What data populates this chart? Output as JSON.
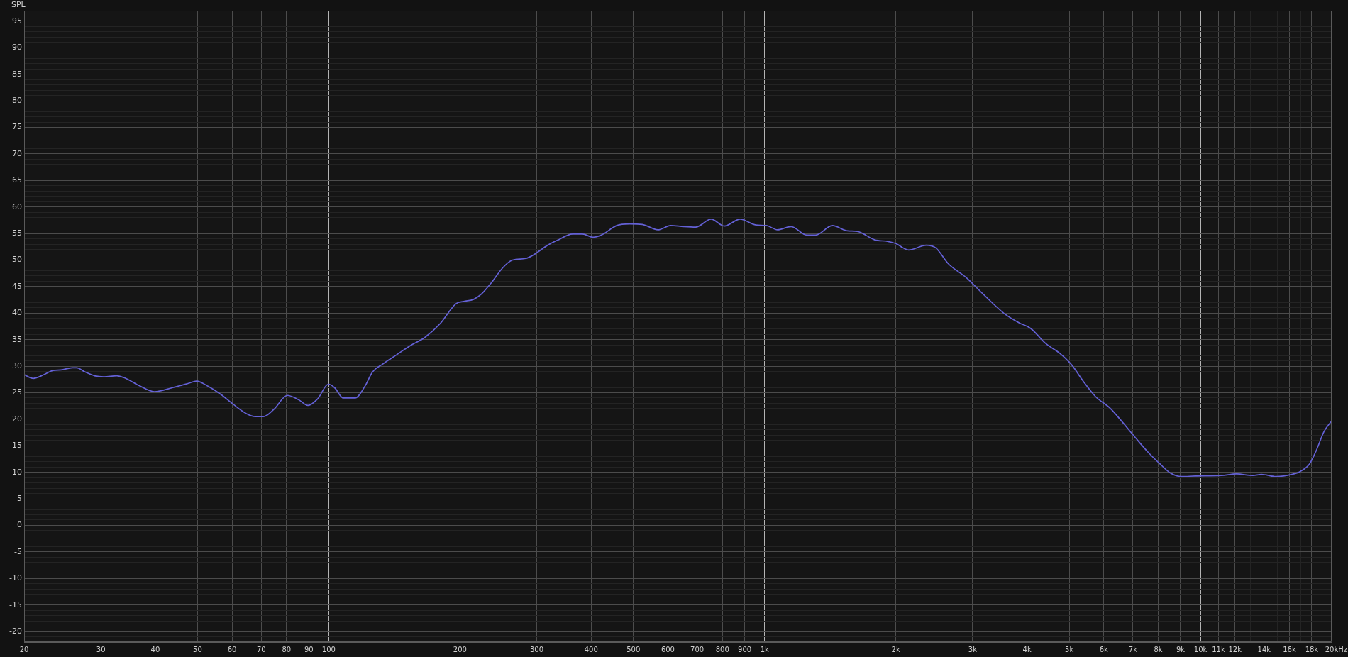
{
  "chart_data": {
    "type": "line",
    "ylabel": "SPL",
    "xlabel": "Hz",
    "x": [
      20,
      21,
      22.2,
      23.3,
      24.3,
      25.8,
      26.4,
      27.6,
      29,
      30.5,
      32.6,
      34,
      36.6,
      39.8,
      43.6,
      47.8,
      49.7,
      52.9,
      56.5,
      60.4,
      64.6,
      67.9,
      70.8,
      75.1,
      80.3,
      85.2,
      89.6,
      94.2,
      99.8,
      103,
      108,
      115,
      121,
      126,
      133,
      144,
      154,
      166,
      180,
      196,
      204,
      215,
      224,
      237,
      251,
      264,
      283,
      294,
      318,
      334,
      363,
      382,
      404,
      422,
      458,
      490,
      524,
      569,
      609,
      651,
      695,
      754,
      808,
      879,
      955,
      1010,
      1070,
      1150,
      1250,
      1310,
      1430,
      1550,
      1630,
      1790,
      1920,
      2000,
      2140,
      2350,
      2470,
      2640,
      2900,
      3180,
      3550,
      3830,
      4080,
      4410,
      4760,
      5070,
      5390,
      5740,
      6200,
      6600,
      7130,
      7580,
      8070,
      8520,
      9060,
      9720,
      11170,
      12100,
      13200,
      13800,
      14900,
      16200,
      16970,
      17800,
      18480,
      19210,
      20000
    ],
    "values": [
      28.4,
      27.7,
      28.4,
      29.2,
      29.3,
      29.7,
      29.7,
      28.9,
      28.2,
      28.0,
      28.2,
      27.8,
      26.4,
      25.2,
      25.9,
      26.8,
      27.2,
      26.2,
      24.7,
      22.8,
      21.1,
      20.5,
      20.5,
      22.0,
      24.5,
      23.7,
      22.6,
      23.8,
      26.6,
      26.0,
      24.0,
      24.0,
      26.2,
      28.9,
      30.4,
      32.3,
      33.9,
      35.4,
      38.0,
      41.8,
      42.2,
      42.6,
      43.6,
      45.9,
      48.6,
      50.0,
      50.3,
      50.9,
      52.8,
      53.7,
      54.9,
      54.9,
      54.3,
      54.7,
      56.5,
      56.8,
      56.7,
      55.7,
      56.5,
      56.3,
      56.2,
      57.7,
      56.4,
      57.7,
      56.6,
      56.5,
      55.7,
      56.3,
      54.7,
      54.7,
      56.5,
      55.5,
      55.4,
      53.8,
      53.5,
      53.1,
      51.9,
      52.8,
      52.3,
      49.3,
      46.7,
      43.5,
      39.9,
      38.2,
      37.1,
      34.3,
      32.4,
      30.2,
      27.1,
      24.3,
      22.1,
      19.6,
      16.3,
      13.8,
      11.6,
      9.9,
      9.2,
      9.3,
      9.4,
      9.7,
      9.4,
      9.6,
      9.2,
      9.6,
      10.2,
      11.6,
      14.3,
      17.7,
      19.7
    ],
    "color": "#6461d6",
    "xlim": [
      20,
      20000
    ],
    "ylim": [
      -22,
      97
    ],
    "xticks": [
      20,
      30,
      40,
      50,
      60,
      70,
      80,
      90,
      100,
      200,
      300,
      400,
      500,
      600,
      700,
      800,
      900,
      {
        "value": 1000,
        "label": "1k"
      },
      {
        "value": 2000,
        "label": "2k"
      },
      {
        "value": 3000,
        "label": "3k"
      },
      {
        "value": 4000,
        "label": "4k"
      },
      {
        "value": 5000,
        "label": "5k"
      },
      {
        "value": 6000,
        "label": "6k"
      },
      {
        "value": 7000,
        "label": "7k"
      },
      {
        "value": 8000,
        "label": "8k"
      },
      {
        "value": 9000,
        "label": "9k"
      },
      {
        "value": 10000,
        "label": "10k"
      },
      {
        "value": 11000,
        "label": "11k"
      },
      {
        "value": 12000,
        "label": "12k"
      },
      {
        "value": 13000,
        "label": null
      },
      {
        "value": 14000,
        "label": "14k"
      },
      {
        "value": 15000,
        "label": null
      },
      {
        "value": 16000,
        "label": "16k"
      },
      {
        "value": 17000,
        "label": null
      },
      {
        "value": 18000,
        "label": "18k"
      },
      {
        "value": 19000,
        "label": null
      },
      {
        "value": 20000,
        "label": "20k"
      }
    ],
    "yticks": [
      {
        "value": -21,
        "label": null
      },
      -20,
      {
        "value": -19,
        "label": null
      },
      {
        "value": -18,
        "label": null
      },
      {
        "value": -17,
        "label": null
      },
      {
        "value": -16,
        "label": null
      },
      -15,
      {
        "value": -14,
        "label": null
      },
      {
        "value": -13,
        "label": null
      },
      {
        "value": -12,
        "label": null
      },
      {
        "value": -11,
        "label": null
      },
      -10,
      {
        "value": -9,
        "label": null
      },
      {
        "value": -8,
        "label": null
      },
      {
        "value": -7,
        "label": null
      },
      {
        "value": -6,
        "label": null
      },
      -5,
      {
        "value": -4,
        "label": null
      },
      {
        "value": -3,
        "label": null
      },
      {
        "value": -2,
        "label": null
      },
      {
        "value": -1,
        "label": null
      },
      0,
      {
        "value": 1,
        "label": null
      },
      {
        "value": 2,
        "label": null
      },
      {
        "value": 3,
        "label": null
      },
      {
        "value": 4,
        "label": null
      },
      5,
      {
        "value": 6,
        "label": null
      },
      {
        "value": 7,
        "label": null
      },
      {
        "value": 8,
        "label": null
      },
      {
        "value": 9,
        "label": null
      },
      10,
      {
        "value": 11,
        "label": null
      },
      {
        "value": 12,
        "label": null
      },
      {
        "value": 13,
        "label": null
      },
      {
        "value": 14,
        "label": null
      },
      15,
      {
        "value": 16,
        "label": null
      },
      {
        "value": 17,
        "label": null
      },
      {
        "value": 18,
        "label": null
      },
      {
        "value": 19,
        "label": null
      },
      20,
      {
        "value": 21,
        "label": null
      },
      {
        "value": 22,
        "label": null
      },
      {
        "value": 23,
        "label": null
      },
      {
        "value": 24,
        "label": null
      },
      25,
      {
        "value": 26,
        "label": null
      },
      {
        "value": 27,
        "label": null
      },
      {
        "value": 28,
        "label": null
      },
      {
        "value": 29,
        "label": null
      },
      30,
      {
        "value": 31,
        "label": null
      },
      {
        "value": 32,
        "label": null
      },
      {
        "value": 33,
        "label": null
      },
      {
        "value": 34,
        "label": null
      },
      35,
      {
        "value": 36,
        "label": null
      },
      {
        "value": 37,
        "label": null
      },
      {
        "value": 38,
        "label": null
      },
      {
        "value": 39,
        "label": null
      },
      40,
      {
        "value": 41,
        "label": null
      },
      {
        "value": 42,
        "label": null
      },
      {
        "value": 43,
        "label": null
      },
      {
        "value": 44,
        "label": null
      },
      45,
      {
        "value": 46,
        "label": null
      },
      {
        "value": 47,
        "label": null
      },
      {
        "value": 48,
        "label": null
      },
      {
        "value": 49,
        "label": null
      },
      50,
      {
        "value": 51,
        "label": null
      },
      {
        "value": 52,
        "label": null
      },
      {
        "value": 53,
        "label": null
      },
      {
        "value": 54,
        "label": null
      },
      55,
      {
        "value": 56,
        "label": null
      },
      {
        "value": 57,
        "label": null
      },
      {
        "value": 58,
        "label": null
      },
      {
        "value": 59,
        "label": null
      },
      60,
      {
        "value": 61,
        "label": null
      },
      {
        "value": 62,
        "label": null
      },
      {
        "value": 63,
        "label": null
      },
      {
        "value": 64,
        "label": null
      },
      65,
      {
        "value": 66,
        "label": null
      },
      {
        "value": 67,
        "label": null
      },
      {
        "value": 68,
        "label": null
      },
      {
        "value": 69,
        "label": null
      },
      70,
      {
        "value": 71,
        "label": null
      },
      {
        "value": 72,
        "label": null
      },
      {
        "value": 73,
        "label": null
      },
      {
        "value": 74,
        "label": null
      },
      75,
      {
        "value": 76,
        "label": null
      },
      {
        "value": 77,
        "label": null
      },
      {
        "value": 78,
        "label": null
      },
      {
        "value": 79,
        "label": null
      },
      80,
      {
        "value": 81,
        "label": null
      },
      {
        "value": 82,
        "label": null
      },
      {
        "value": 83,
        "label": null
      },
      {
        "value": 84,
        "label": null
      },
      85,
      {
        "value": 86,
        "label": null
      },
      {
        "value": 87,
        "label": null
      },
      {
        "value": 88,
        "label": null
      },
      {
        "value": 89,
        "label": null
      },
      90,
      {
        "value": 91,
        "label": null
      },
      {
        "value": 92,
        "label": null
      },
      {
        "value": 93,
        "label": null
      },
      {
        "value": 94,
        "label": null
      },
      95,
      {
        "value": 96,
        "label": null
      }
    ],
    "log": "x",
    "grid": true,
    "legend": false,
    "marker": "none",
    "line_style": "solid"
  }
}
